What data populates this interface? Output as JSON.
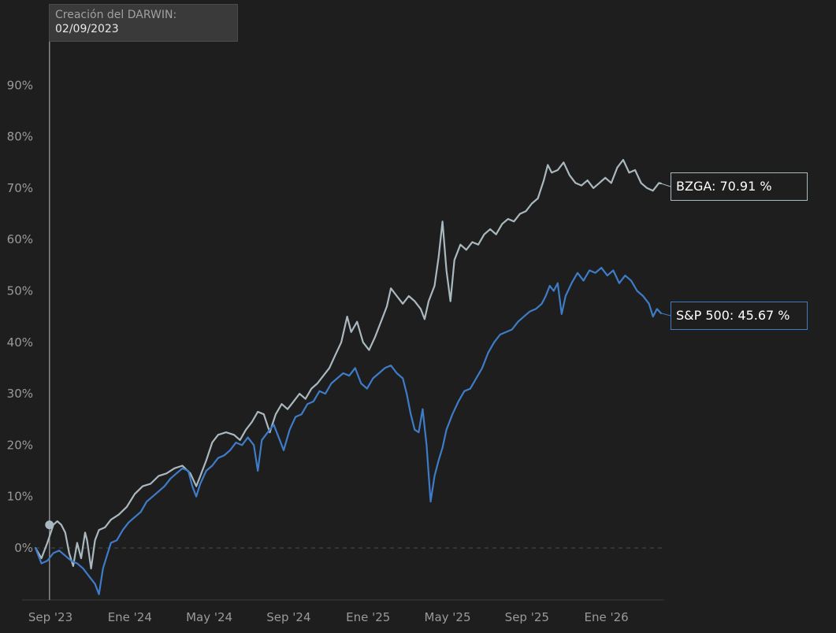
{
  "creation": {
    "label": "Creación del DARWIN:",
    "date": "02/09/2023"
  },
  "chart_data": {
    "type": "line",
    "title": "",
    "xlabel": "",
    "ylabel": "",
    "x_tick_labels": [
      "Sep '23",
      "Ene '24",
      "May '24",
      "Sep '24",
      "Ene '25",
      "May '25",
      "Sep '25",
      "Ene '26"
    ],
    "y_tick_labels": [
      "0%",
      "10%",
      "20%",
      "30%",
      "40%",
      "50%",
      "60%",
      "70%",
      "80%",
      "90%"
    ],
    "y_ticks": [
      0,
      10,
      20,
      30,
      40,
      50,
      60,
      70,
      80,
      90
    ],
    "ylim": [
      -9,
      100
    ],
    "x_unit": "months since Sep '23",
    "xlim": [
      0,
      31.8
    ],
    "grid": false,
    "zero_line": true,
    "creation_marker_x": 0.15,
    "series": [
      {
        "name": "BZGA",
        "color": "#aab8bf",
        "end_label": "BZGA: 70.91 %",
        "points": [
          [
            0,
            0
          ],
          [
            0.3,
            -2
          ],
          [
            0.6,
            1
          ],
          [
            0.9,
            4.5
          ],
          [
            1.1,
            5.2
          ],
          [
            1.3,
            4.5
          ],
          [
            1.5,
            3
          ],
          [
            1.7,
            -1
          ],
          [
            1.9,
            -3.5
          ],
          [
            2.1,
            1
          ],
          [
            2.3,
            -2
          ],
          [
            2.5,
            3
          ],
          [
            2.6,
            1.5
          ],
          [
            2.8,
            -4
          ],
          [
            3.0,
            1.5
          ],
          [
            3.2,
            3.5
          ],
          [
            3.5,
            4
          ],
          [
            3.8,
            5.5
          ],
          [
            4.2,
            6.5
          ],
          [
            4.6,
            8
          ],
          [
            5.0,
            10.5
          ],
          [
            5.4,
            12
          ],
          [
            5.8,
            12.5
          ],
          [
            6.2,
            14
          ],
          [
            6.6,
            14.5
          ],
          [
            7.0,
            15.5
          ],
          [
            7.4,
            16
          ],
          [
            7.8,
            14.5
          ],
          [
            8.1,
            12
          ],
          [
            8.3,
            14
          ],
          [
            8.6,
            17
          ],
          [
            8.9,
            20.5
          ],
          [
            9.2,
            22
          ],
          [
            9.6,
            22.5
          ],
          [
            10.0,
            22
          ],
          [
            10.3,
            21
          ],
          [
            10.6,
            23
          ],
          [
            10.9,
            24.5
          ],
          [
            11.2,
            26.5
          ],
          [
            11.5,
            26
          ],
          [
            11.8,
            22.5
          ],
          [
            12.1,
            26
          ],
          [
            12.4,
            28
          ],
          [
            12.7,
            27
          ],
          [
            13.0,
            28.5
          ],
          [
            13.3,
            30
          ],
          [
            13.6,
            29
          ],
          [
            13.9,
            31
          ],
          [
            14.2,
            32
          ],
          [
            14.5,
            33.5
          ],
          [
            14.8,
            35
          ],
          [
            15.1,
            37.5
          ],
          [
            15.4,
            40
          ],
          [
            15.7,
            45
          ],
          [
            15.9,
            42
          ],
          [
            16.2,
            44
          ],
          [
            16.5,
            40
          ],
          [
            16.8,
            38.5
          ],
          [
            17.1,
            41
          ],
          [
            17.4,
            44
          ],
          [
            17.7,
            47
          ],
          [
            17.9,
            50.5
          ],
          [
            18.2,
            49
          ],
          [
            18.5,
            47.5
          ],
          [
            18.8,
            49
          ],
          [
            19.1,
            48
          ],
          [
            19.4,
            46.5
          ],
          [
            19.6,
            44.5
          ],
          [
            19.8,
            48
          ],
          [
            20.1,
            51
          ],
          [
            20.3,
            56.5
          ],
          [
            20.5,
            63.5
          ],
          [
            20.7,
            54
          ],
          [
            20.9,
            48
          ],
          [
            21.1,
            56
          ],
          [
            21.4,
            59
          ],
          [
            21.7,
            58
          ],
          [
            22.0,
            59.5
          ],
          [
            22.3,
            59
          ],
          [
            22.6,
            61
          ],
          [
            22.9,
            62
          ],
          [
            23.2,
            61
          ],
          [
            23.5,
            63
          ],
          [
            23.8,
            64
          ],
          [
            24.1,
            63.5
          ],
          [
            24.4,
            65
          ],
          [
            24.7,
            65.5
          ],
          [
            25.0,
            67
          ],
          [
            25.3,
            68
          ],
          [
            25.6,
            71.5
          ],
          [
            25.8,
            74.5
          ],
          [
            26.0,
            73
          ],
          [
            26.3,
            73.5
          ],
          [
            26.6,
            75
          ],
          [
            26.9,
            72.5
          ],
          [
            27.2,
            71
          ],
          [
            27.5,
            70.5
          ],
          [
            27.8,
            71.5
          ],
          [
            28.1,
            70
          ],
          [
            28.4,
            71
          ],
          [
            28.7,
            72
          ],
          [
            29.0,
            71
          ],
          [
            29.3,
            74
          ],
          [
            29.6,
            75.5
          ],
          [
            29.9,
            73
          ],
          [
            30.2,
            73.5
          ],
          [
            30.5,
            71
          ],
          [
            30.8,
            70
          ],
          [
            31.1,
            69.5
          ],
          [
            31.4,
            71
          ],
          [
            31.5,
            70.9
          ]
        ]
      },
      {
        "name": "S&P 500",
        "color": "#3e7cc8",
        "end_label": "S&P 500: 45.67 %",
        "points": [
          [
            0,
            0
          ],
          [
            0.3,
            -3
          ],
          [
            0.6,
            -2.5
          ],
          [
            0.9,
            -1
          ],
          [
            1.2,
            -0.5
          ],
          [
            1.5,
            -1.5
          ],
          [
            1.8,
            -2.5
          ],
          [
            2.1,
            -3
          ],
          [
            2.4,
            -4
          ],
          [
            2.7,
            -5.5
          ],
          [
            3.0,
            -7
          ],
          [
            3.2,
            -9
          ],
          [
            3.4,
            -4
          ],
          [
            3.6,
            -1.5
          ],
          [
            3.8,
            1
          ],
          [
            4.1,
            1.5
          ],
          [
            4.4,
            3.5
          ],
          [
            4.7,
            5
          ],
          [
            5.0,
            6
          ],
          [
            5.3,
            7
          ],
          [
            5.6,
            9
          ],
          [
            5.9,
            10
          ],
          [
            6.2,
            11
          ],
          [
            6.5,
            12
          ],
          [
            6.8,
            13.5
          ],
          [
            7.1,
            14.5
          ],
          [
            7.4,
            15.5
          ],
          [
            7.7,
            15
          ],
          [
            7.9,
            12
          ],
          [
            8.1,
            10
          ],
          [
            8.3,
            12.5
          ],
          [
            8.6,
            15
          ],
          [
            8.9,
            16
          ],
          [
            9.2,
            17.5
          ],
          [
            9.5,
            18
          ],
          [
            9.8,
            19
          ],
          [
            10.1,
            20.5
          ],
          [
            10.4,
            20
          ],
          [
            10.7,
            21.5
          ],
          [
            11.0,
            20
          ],
          [
            11.2,
            15
          ],
          [
            11.4,
            21
          ],
          [
            11.7,
            22.5
          ],
          [
            12.0,
            24
          ],
          [
            12.3,
            21
          ],
          [
            12.5,
            19
          ],
          [
            12.8,
            23
          ],
          [
            13.1,
            25.5
          ],
          [
            13.4,
            26
          ],
          [
            13.7,
            28
          ],
          [
            14.0,
            28.5
          ],
          [
            14.3,
            30.5
          ],
          [
            14.6,
            30
          ],
          [
            14.9,
            32
          ],
          [
            15.2,
            33
          ],
          [
            15.5,
            34
          ],
          [
            15.8,
            33.5
          ],
          [
            16.1,
            35
          ],
          [
            16.4,
            32
          ],
          [
            16.7,
            31
          ],
          [
            17.0,
            33
          ],
          [
            17.3,
            34
          ],
          [
            17.6,
            35
          ],
          [
            17.9,
            35.5
          ],
          [
            18.2,
            34
          ],
          [
            18.5,
            33
          ],
          [
            18.7,
            30
          ],
          [
            18.9,
            26
          ],
          [
            19.1,
            23
          ],
          [
            19.3,
            22.5
          ],
          [
            19.5,
            27
          ],
          [
            19.7,
            20
          ],
          [
            19.9,
            9
          ],
          [
            20.1,
            14
          ],
          [
            20.3,
            17
          ],
          [
            20.5,
            19.5
          ],
          [
            20.7,
            23
          ],
          [
            21.0,
            26
          ],
          [
            21.3,
            28.5
          ],
          [
            21.6,
            30.5
          ],
          [
            21.9,
            31
          ],
          [
            22.2,
            33
          ],
          [
            22.5,
            35
          ],
          [
            22.8,
            38
          ],
          [
            23.1,
            40
          ],
          [
            23.4,
            41.5
          ],
          [
            23.7,
            42
          ],
          [
            24.0,
            42.5
          ],
          [
            24.3,
            44
          ],
          [
            24.6,
            45
          ],
          [
            24.9,
            46
          ],
          [
            25.2,
            46.5
          ],
          [
            25.5,
            47.5
          ],
          [
            25.7,
            49
          ],
          [
            25.9,
            51
          ],
          [
            26.1,
            50
          ],
          [
            26.3,
            51.5
          ],
          [
            26.5,
            45.5
          ],
          [
            26.7,
            49
          ],
          [
            27.0,
            51.5
          ],
          [
            27.3,
            53.5
          ],
          [
            27.6,
            52
          ],
          [
            27.9,
            54
          ],
          [
            28.2,
            53.5
          ],
          [
            28.5,
            54.5
          ],
          [
            28.8,
            53
          ],
          [
            29.1,
            54
          ],
          [
            29.4,
            51.5
          ],
          [
            29.7,
            53
          ],
          [
            30.0,
            52
          ],
          [
            30.3,
            50
          ],
          [
            30.6,
            49
          ],
          [
            30.9,
            47.5
          ],
          [
            31.1,
            45
          ],
          [
            31.3,
            46.5
          ],
          [
            31.5,
            45.67
          ]
        ]
      }
    ]
  }
}
